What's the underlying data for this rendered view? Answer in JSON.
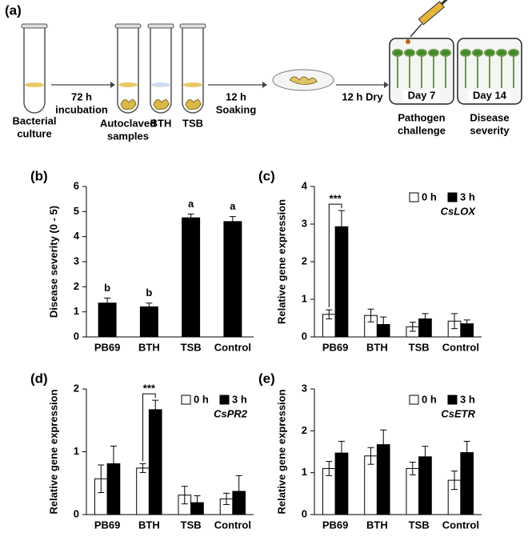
{
  "diagram": {
    "label": "(a)",
    "culture": [
      "Bacterial",
      "culture"
    ],
    "step1": [
      "72 h",
      "incubation"
    ],
    "samples": [
      "Autoclaved",
      "samples"
    ],
    "bth": "BTH",
    "tsb": "TSB",
    "step2": [
      "12 h",
      "Soaking"
    ],
    "step3": "12 h Dry",
    "day7": "Day 7",
    "day14": "Day 14",
    "challenge": [
      "Pathogen",
      "challenge"
    ],
    "severity": [
      "Disease",
      "severity"
    ]
  },
  "chart_data": [
    {
      "type": "bar",
      "label": "(b)",
      "ylabel": "Disease severity (0 - 5)",
      "categories": [
        "PB69",
        "BTH",
        "TSB",
        "Control"
      ],
      "values": [
        1.35,
        1.2,
        4.75,
        4.6
      ],
      "errors": [
        0.2,
        0.15,
        0.15,
        0.2
      ],
      "letters": [
        "b",
        "b",
        "a",
        "a"
      ],
      "color": "#000000",
      "ylim": [
        0,
        6
      ],
      "yticks": [
        0,
        1,
        2,
        3,
        4,
        5,
        6
      ]
    },
    {
      "type": "bar",
      "label": "(c)",
      "ylabel": "Relative gene expression",
      "gene": "CsLOX",
      "categories": [
        "PB69",
        "BTH",
        "TSB",
        "Control"
      ],
      "significance": [
        "***",
        null,
        null,
        null
      ],
      "series": [
        {
          "name": "0 h",
          "color": "#ffffff",
          "values": [
            0.6,
            0.57,
            0.27,
            0.42
          ],
          "errors": [
            0.12,
            0.17,
            0.12,
            0.2
          ]
        },
        {
          "name": "3 h",
          "color": "#000000",
          "values": [
            2.93,
            0.33,
            0.48,
            0.35
          ],
          "errors": [
            0.43,
            0.2,
            0.14,
            0.1
          ]
        }
      ],
      "legend": "upper right",
      "ylim": [
        0,
        4
      ],
      "yticks": [
        0,
        1,
        2,
        3,
        4
      ]
    },
    {
      "type": "bar",
      "label": "(d)",
      "ylabel": "Relative gene expression",
      "gene": "CsPR2",
      "categories": [
        "PB69",
        "BTH",
        "TSB",
        "Control"
      ],
      "significance": [
        null,
        "***",
        null,
        null
      ],
      "series": [
        {
          "name": "0 h",
          "color": "#ffffff",
          "values": [
            0.57,
            0.74,
            0.31,
            0.25
          ],
          "errors": [
            0.22,
            0.07,
            0.14,
            0.09
          ]
        },
        {
          "name": "3 h",
          "color": "#000000",
          "values": [
            0.81,
            1.67,
            0.19,
            0.37
          ],
          "errors": [
            0.28,
            0.15,
            0.11,
            0.25
          ]
        }
      ],
      "legend": "upper right",
      "ylim": [
        0,
        2
      ],
      "yticks": [
        0,
        1,
        2
      ]
    },
    {
      "type": "bar",
      "label": "(e)",
      "ylabel": "Relative gene expression",
      "gene": "CsETR",
      "categories": [
        "PB69",
        "BTH",
        "TSB",
        "Control"
      ],
      "significance": [
        null,
        null,
        null,
        null
      ],
      "series": [
        {
          "name": "0 h",
          "color": "#ffffff",
          "values": [
            1.1,
            1.4,
            1.1,
            0.82
          ],
          "errors": [
            0.17,
            0.2,
            0.15,
            0.22
          ]
        },
        {
          "name": "3 h",
          "color": "#000000",
          "values": [
            1.47,
            1.67,
            1.38,
            1.48
          ],
          "errors": [
            0.28,
            0.35,
            0.25,
            0.27
          ]
        }
      ],
      "legend": "upper right",
      "ylim": [
        0,
        3
      ],
      "yticks": [
        0,
        1,
        2,
        3
      ]
    }
  ]
}
